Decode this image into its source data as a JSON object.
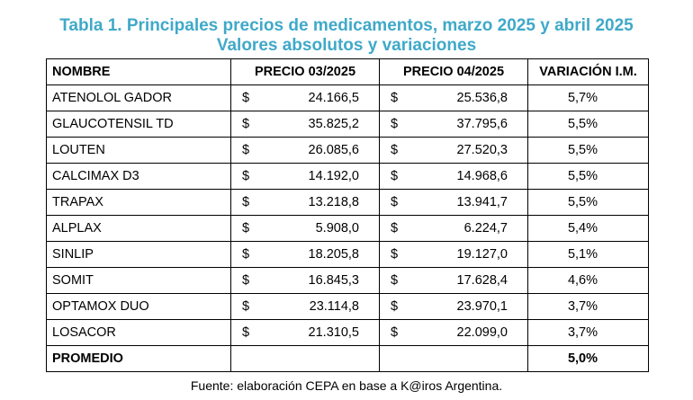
{
  "title": {
    "line1": "Tabla 1. Principales precios de medicamentos, marzo 2025 y abril 2025",
    "line2": "Valores absolutos y variaciones"
  },
  "table": {
    "headers": [
      "NOMBRE",
      "PRECIO 03/2025",
      "PRECIO 04/2025",
      "VARIACIÓN I.M."
    ],
    "currency": "$",
    "rows": [
      {
        "name": "ATENOLOL GADOR",
        "p1": "24.166,5",
        "p2": "25.536,8",
        "var": "5,7%"
      },
      {
        "name": "GLAUCOTENSIL TD",
        "p1": "35.825,2",
        "p2": "37.795,6",
        "var": "5,5%"
      },
      {
        "name": "LOUTEN",
        "p1": "26.085,6",
        "p2": "27.520,3",
        "var": "5,5%"
      },
      {
        "name": "CALCIMAX D3",
        "p1": "14.192,0",
        "p2": "14.968,6",
        "var": "5,5%"
      },
      {
        "name": "TRAPAX",
        "p1": "13.218,8",
        "p2": "13.941,7",
        "var": "5,5%"
      },
      {
        "name": "ALPLAX",
        "p1": "5.908,0",
        "p2": "6.224,7",
        "var": "5,4%"
      },
      {
        "name": "SINLIP",
        "p1": "18.205,8",
        "p2": "19.127,0",
        "var": "5,1%"
      },
      {
        "name": "SOMIT",
        "p1": "16.845,3",
        "p2": "17.628,4",
        "var": "4,6%"
      },
      {
        "name": "OPTAMOX DUO",
        "p1": "23.114,8",
        "p2": "23.970,1",
        "var": "3,7%"
      },
      {
        "name": "LOSACOR",
        "p1": "21.310,5",
        "p2": "22.099,0",
        "var": "3,7%"
      }
    ],
    "average": {
      "label": "PROMEDIO",
      "var": "5,0%"
    }
  },
  "source": "Fuente: elaboración CEPA en base a K@iros Argentina.",
  "colors": {
    "title": "#3fa9c9",
    "text": "#000000"
  }
}
